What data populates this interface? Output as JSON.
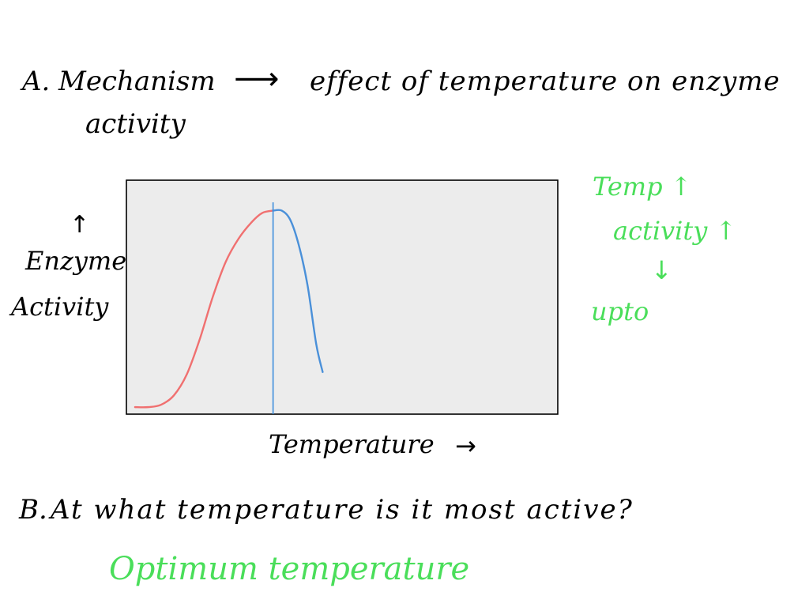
{
  "section_a": {
    "label": "A.",
    "mechanism": "Mechanism",
    "arrow": "⟶",
    "effect_line1": "effect of temperature on enzyme",
    "effect_line2": "activity"
  },
  "chart_data": {
    "type": "line",
    "title": "",
    "xlabel": "Temperature",
    "ylabel_line1": "Enzyme",
    "ylabel_line2": "Activity",
    "x_arrow": "→",
    "y_arrow": "↑",
    "xlim": [
      0,
      100
    ],
    "ylim": [
      0,
      100
    ],
    "grid": false,
    "legend": "none",
    "optimum_x": 34,
    "series": [
      {
        "color": "#f07070",
        "x": [
          2,
          5,
          8,
          11,
          14,
          17,
          20,
          23,
          26,
          29,
          31.5,
          34
        ],
        "values": [
          3,
          3,
          4,
          8,
          17,
          32,
          50,
          65,
          75,
          82,
          86,
          87
        ]
      },
      {
        "color": "#4a90d9",
        "x": [
          34,
          36,
          38,
          40,
          42,
          44,
          45.5
        ],
        "values": [
          87,
          87,
          83,
          72,
          55,
          30,
          18
        ]
      }
    ],
    "colors": {
      "plot_background": "#ececec",
      "plot_border": "#000000",
      "optimum_line": "#3f8fdc"
    }
  },
  "notes": {
    "line1": "Temp ↑",
    "line2": "activity ↑",
    "arrow": "↓",
    "line3": "upto",
    "color": "#4ade5a"
  },
  "section_b": {
    "label": "B.",
    "question": "At what temperature is it most active?",
    "answer": "Optimum temperature",
    "answer_color": "#4ade5a"
  }
}
